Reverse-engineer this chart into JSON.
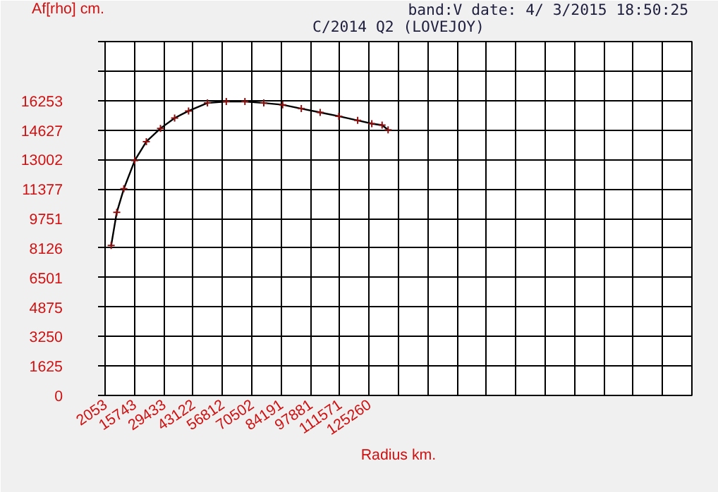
{
  "chart_data": {
    "type": "line",
    "title": "C/2014 Q2 (LOVEJOY)",
    "subtitle": "band:V date:  4/ 3/2015 18:50:25",
    "ylabel": "Af[rho] cm.",
    "xlabel": "Radius km.",
    "x": [
      4900,
      7500,
      10800,
      15900,
      21300,
      27900,
      34500,
      41000,
      49800,
      58600,
      67300,
      76100,
      84900,
      93600,
      102400,
      111100,
      119900,
      126500,
      131300,
      134100
    ],
    "series": [
      {
        "color": "#000000",
        "values": [
          8270,
          10090,
          11390,
          12950,
          13990,
          14720,
          15290,
          15680,
          16120,
          16200,
          16200,
          16120,
          16020,
          15810,
          15600,
          15390,
          15160,
          14980,
          14900,
          14640
        ]
      }
    ],
    "marker": "cross",
    "grid": true,
    "xlim": [
      2053,
      275853
    ],
    "xticks": [
      2053,
      15743,
      29433,
      43122,
      56812,
      70502,
      84191,
      97881,
      111571,
      125260,
      {
        "value": 138950,
        "label": null
      },
      {
        "value": 152640,
        "label": null
      },
      {
        "value": 166329,
        "label": null
      },
      {
        "value": 180019,
        "label": null
      },
      {
        "value": 193709,
        "label": null
      },
      {
        "value": 207398,
        "label": null
      },
      {
        "value": 221088,
        "label": null
      },
      {
        "value": 234778,
        "label": null
      },
      {
        "value": 248467,
        "label": null
      },
      {
        "value": 262157,
        "label": null
      },
      {
        "value": 275853,
        "label": null
      }
    ],
    "ylim": [
      0,
      19504
    ],
    "yticks": [
      0,
      1625,
      3250,
      4875,
      6501,
      8126,
      9751,
      11377,
      13002,
      14627,
      16253,
      {
        "value": 17878,
        "label": null
      },
      {
        "value": 19504,
        "label": null
      }
    ]
  }
}
